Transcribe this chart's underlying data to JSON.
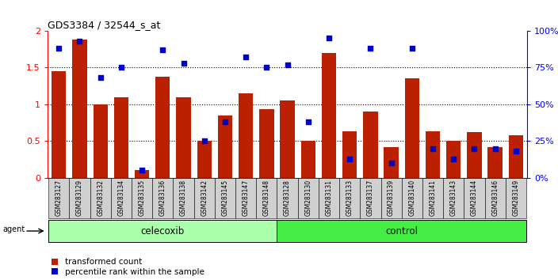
{
  "title": "GDS3384 / 32544_s_at",
  "samples": [
    "GSM283127",
    "GSM283129",
    "GSM283132",
    "GSM283134",
    "GSM283135",
    "GSM283136",
    "GSM283138",
    "GSM283142",
    "GSM283145",
    "GSM283147",
    "GSM283148",
    "GSM283128",
    "GSM283130",
    "GSM283131",
    "GSM283133",
    "GSM283137",
    "GSM283139",
    "GSM283140",
    "GSM283141",
    "GSM283143",
    "GSM283144",
    "GSM283146",
    "GSM283149"
  ],
  "transformed_counts": [
    1.45,
    1.88,
    1.0,
    1.1,
    0.1,
    1.38,
    1.1,
    0.5,
    0.85,
    1.15,
    0.93,
    1.05,
    0.5,
    1.7,
    0.63,
    0.9,
    0.42,
    1.35,
    0.63,
    0.5,
    0.62,
    0.42,
    0.58
  ],
  "percentile_ranks": [
    88,
    93,
    68,
    75,
    5,
    87,
    78,
    25,
    38,
    82,
    75,
    77,
    38,
    95,
    13,
    88,
    10,
    88,
    20,
    13,
    20,
    20,
    18
  ],
  "celecoxib_count": 11,
  "control_count": 12,
  "bar_color": "#bb2000",
  "dot_color": "#0000cc",
  "ylim_left": [
    0,
    2
  ],
  "ylim_right": [
    0,
    100
  ],
  "yticks_left": [
    0,
    0.5,
    1.0,
    1.5,
    2.0
  ],
  "ytick_labels_left": [
    "0",
    "0.5",
    "1",
    "1.5",
    "2"
  ],
  "yticks_right": [
    0,
    25,
    50,
    75,
    100
  ],
  "ytick_labels_right": [
    "0%",
    "25%",
    "50%",
    "75%",
    "100%"
  ],
  "celecoxib_color": "#aaffaa",
  "control_color": "#44ee44",
  "agent_label": "agent",
  "celecoxib_label": "celecoxib",
  "control_label": "control",
  "legend_red_label": "transformed count",
  "legend_blue_label": "percentile rank within the sample",
  "xticklabel_bg": "#d0d0d0"
}
